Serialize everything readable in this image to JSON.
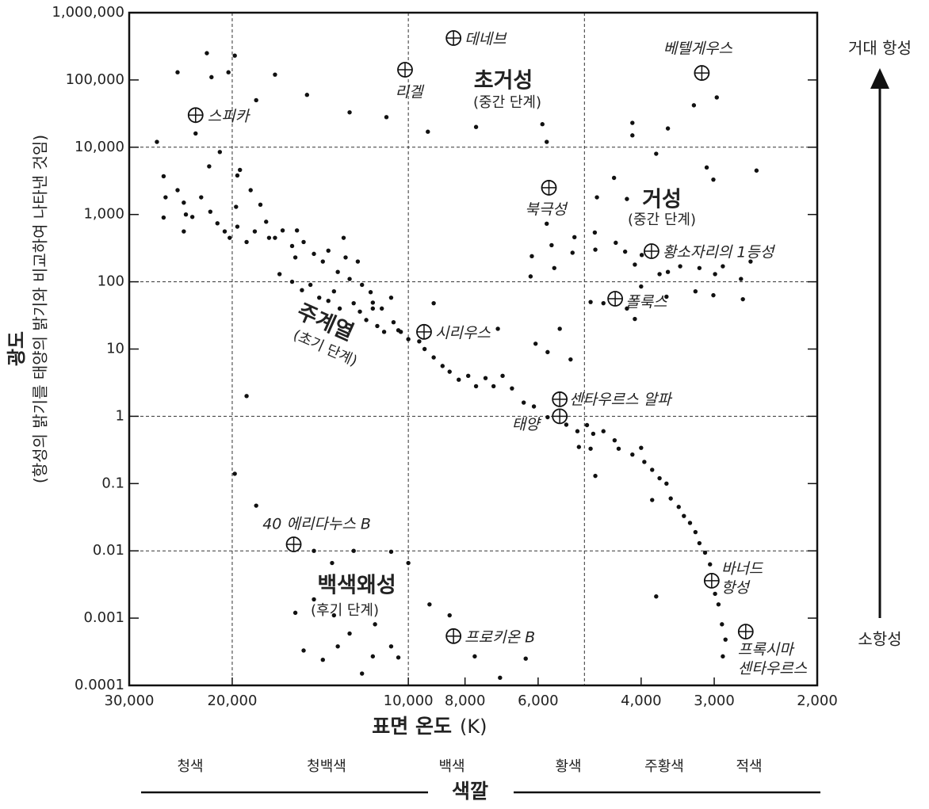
{
  "chart_data": {
    "type": "scatter",
    "y_label": "광도",
    "y_sublabel": "(항성의 밝기를 태양의 밝기와 비교하여 나타낸 것임)",
    "x_label": "표면 온도",
    "x_unit": "(K)",
    "color_title": "색깔",
    "color_names": [
      "청색",
      "청백색",
      "백색",
      "황색",
      "주황색",
      "적색"
    ],
    "arrow_top": "거대 항성",
    "arrow_bottom": "소항성",
    "log_x": true,
    "log_y": true,
    "xlim": [
      30000,
      2000
    ],
    "ylim": [
      0.0001,
      1000000
    ],
    "xticks": [
      {
        "value": 30000,
        "label": "30,000"
      },
      {
        "value": 20000,
        "label": "20,000"
      },
      {
        "value": 10000,
        "label": "10,000"
      },
      {
        "value": 8000,
        "label": "8,000"
      },
      {
        "value": 6000,
        "label": "6,000"
      },
      {
        "value": 4000,
        "label": "4,000"
      },
      {
        "value": 3000,
        "label": "3,000"
      },
      {
        "value": 2000,
        "label": "2,000"
      }
    ],
    "yticks": [
      {
        "value": 1000000,
        "label": "1,000,000"
      },
      {
        "value": 100000,
        "label": "100,000"
      },
      {
        "value": 10000,
        "label": "10,000"
      },
      {
        "value": 1000,
        "label": "1,000"
      },
      100,
      10,
      1,
      0.1,
      0.01,
      0.001,
      0.0001
    ],
    "grid_x": [
      20000,
      10000,
      5000
    ],
    "grid_y": [
      10000,
      100,
      1,
      0.01
    ],
    "color": "#111111",
    "x": [
      24800,
      22100,
      21700,
      20300,
      19800,
      16900,
      18200,
      14900,
      12600,
      10900,
      9260,
      7660,
      5900,
      5800,
      26900,
      23100,
      4140,
      4140,
      3770,
      3600,
      3250,
      2970,
      3090,
      3010,
      2540,
      4450,
      4230,
      4760,
      5200,
      5240,
      4800,
      4790,
      4420,
      4260,
      4100,
      3990,
      3720,
      3600,
      3430,
      3180,
      2990,
      2900,
      2700,
      2600,
      3230,
      3010,
      2680,
      3620,
      4000,
      4230,
      4100,
      4640,
      4880,
      5630,
      6180,
      5690,
      6150,
      5800,
      6060,
      5780,
      5280,
      5510,
      7030,
      9050,
      26200,
      26000,
      26200,
      24800,
      24200,
      24000,
      24200,
      23400,
      22600,
      21800,
      21200,
      20600,
      20200,
      19600,
      19700,
      19600,
      18900,
      18300,
      17500,
      16900,
      16400,
      15800,
      15500,
      15100,
      14500,
      14000,
      13700,
      13200,
      12800,
      12600,
      12200,
      12000,
      11600,
      11500,
      11100,
      10700,
      10600,
      10300,
      16600,
      15800,
      15200,
      14700,
      14200,
      13700,
      13400,
      13100,
      12400,
      12100,
      11800,
      11500,
      11300,
      11000,
      10400,
      10000,
      21900,
      21000,
      19400,
      18600,
      17900,
      17300,
      15600,
      12900,
      9580,
      9380,
      9050,
      8740,
      8500,
      8200,
      7900,
      7660,
      7380,
      7150,
      6900,
      6650,
      6350,
      6100,
      5780,
      5370,
      5140,
      4950,
      4830,
      4640,
      4440,
      4370,
      4140,
      4000,
      3950,
      3830,
      3720,
      3620,
      3560,
      3450,
      3380,
      3300,
      3230,
      3180,
      3110,
      3050,
      2990,
      2950,
      2910,
      2870,
      2900,
      4880,
      4790,
      3830,
      5110,
      18900,
      19800,
      18200,
      15600,
      15100,
      14000,
      13200,
      12600,
      12000,
      11500,
      10700,
      10400,
      14500,
      13500,
      12400,
      10700,
      10000,
      13400,
      14500,
      11400,
      9200,
      8500,
      7700,
      6970,
      6300,
      3770
    ],
    "values": [
      130000,
      250000,
      110000,
      130000,
      230000,
      120000,
      50000,
      60000,
      33000,
      28000,
      17000,
      20000,
      22000,
      12000,
      12000,
      16000,
      23000,
      15000,
      8000,
      19000,
      42000,
      55000,
      5000,
      3300,
      4500,
      3500,
      1700,
      1800,
      460,
      270,
      540,
      300,
      380,
      280,
      180,
      250,
      130,
      140,
      170,
      160,
      130,
      170,
      110,
      200,
      72,
      63,
      55,
      60,
      85,
      40,
      28,
      48,
      50,
      160,
      120,
      350,
      240,
      730,
      12,
      9,
      7,
      20,
      20,
      48,
      3700,
      1800,
      900,
      2300,
      1500,
      1000,
      560,
      920,
      1800,
      1100,
      740,
      560,
      450,
      660,
      1300,
      3800,
      390,
      560,
      780,
      450,
      580,
      340,
      580,
      390,
      260,
      200,
      290,
      140,
      230,
      110,
      200,
      90,
      70,
      49,
      40,
      58,
      25,
      18,
      130,
      100,
      75,
      90,
      58,
      52,
      72,
      40,
      48,
      36,
      27,
      40,
      22,
      18,
      19,
      14,
      5200,
      8500,
      4600,
      2300,
      1400,
      450,
      230,
      450,
      13,
      10,
      7.5,
      5.6,
      4.6,
      3.5,
      4,
      2.8,
      3.7,
      2.8,
      4,
      2.6,
      1.6,
      1.4,
      0.97,
      0.75,
      0.6,
      0.74,
      0.55,
      0.6,
      0.44,
      0.33,
      0.27,
      0.34,
      0.21,
      0.16,
      0.12,
      0.1,
      0.06,
      0.045,
      0.033,
      0.026,
      0.019,
      0.013,
      0.0094,
      0.0063,
      0.0023,
      0.0016,
      0.00081,
      0.00048,
      0.00027,
      0.33,
      0.13,
      0.057,
      0.35,
      2,
      0.14,
      0.047,
      0.0012,
      0.00033,
      0.00024,
      0.00038,
      0.00059,
      0.00015,
      0.00027,
      0.00038,
      0.00026,
      0.01,
      0.0066,
      0.01,
      0.0097,
      0.0066,
      0.0011,
      0.0019,
      0.00081,
      0.0016,
      0.0011,
      0.00027,
      0.00013,
      0.00025,
      0.0021
    ],
    "stars": [
      {
        "name": "데네브",
        "x": 8370,
        "y": 420000
      },
      {
        "name": "리겔",
        "x": 10130,
        "y": 142000
      },
      {
        "name": "베텔게우스",
        "x": 3150,
        "y": 127000
      },
      {
        "name": "스피카",
        "x": 23100,
        "y": 30000
      },
      {
        "name": "북극성",
        "x": 5750,
        "y": 2500
      },
      {
        "name": "황소자리의 1등성",
        "x": 3840,
        "y": 285
      },
      {
        "name": "폴룩스",
        "x": 4430,
        "y": 56
      },
      {
        "name": "시리우스",
        "x": 9400,
        "y": 18
      },
      {
        "name": "센타우르스 알파",
        "x": 5510,
        "y": 1.79
      },
      {
        "name": "태양",
        "x": 5510,
        "y": 1
      },
      {
        "name": "40 에리다누스 B",
        "x": 15700,
        "y": 0.0125
      },
      {
        "name": "바너드 항성",
        "x": 3030,
        "y": 0.0036
      },
      {
        "name": "프로키온 B",
        "x": 8370,
        "y": 0.00054
      },
      {
        "name": "프록시마 센타우르스",
        "x": 2650,
        "y": 0.00063
      }
    ],
    "annotations": [
      {
        "title": "초거성",
        "note": "(중간 단계)"
      },
      {
        "title": "거성",
        "note": "(중간 단계)"
      },
      {
        "title": "주계열",
        "note": "(초기 단계)"
      },
      {
        "title": "백색왜성",
        "note": "(후기 단계)"
      }
    ]
  }
}
